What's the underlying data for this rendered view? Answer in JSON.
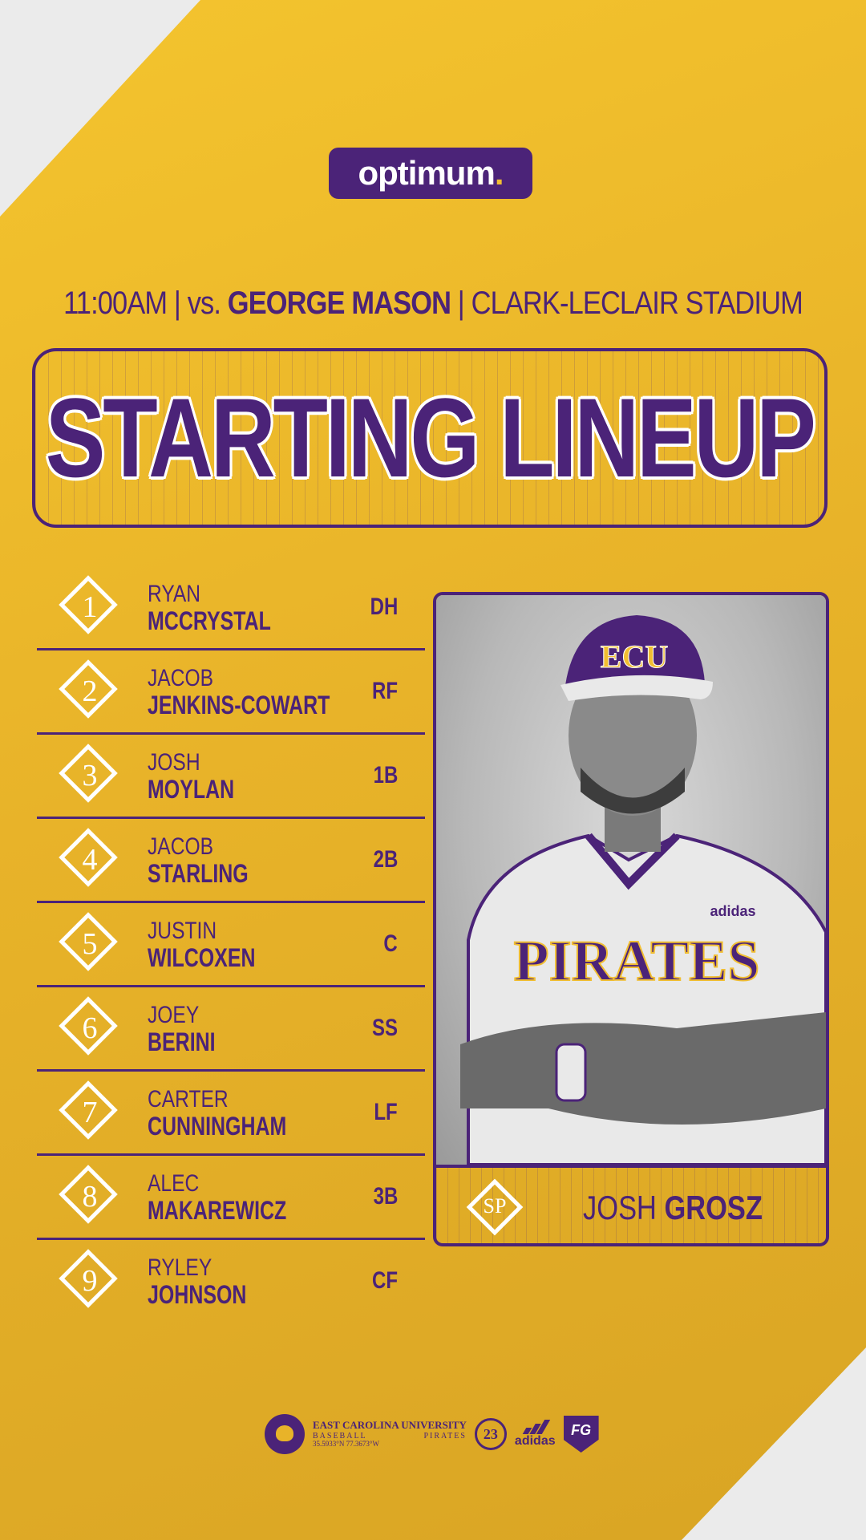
{
  "sponsor": {
    "name": "optimum",
    "dot": "."
  },
  "game": {
    "time": "11:00AM",
    "opponent_prefix": "vs.",
    "opponent": "GEORGE MASON",
    "venue": "CLARK-LECLAIR STADIUM"
  },
  "title": "STARTING LINEUP",
  "lineup": [
    {
      "order": "1",
      "first": "RYAN",
      "last": "MCCRYSTAL",
      "position": "DH"
    },
    {
      "order": "2",
      "first": "JACOB",
      "last": "JENKINS-COWART",
      "position": "RF"
    },
    {
      "order": "3",
      "first": "JOSH",
      "last": "MOYLAN",
      "position": "1B"
    },
    {
      "order": "4",
      "first": "JACOB",
      "last": "STARLING",
      "position": "2B"
    },
    {
      "order": "5",
      "first": "JUSTIN",
      "last": "WILCOXEN",
      "position": "C"
    },
    {
      "order": "6",
      "first": "JOEY",
      "last": "BERINI",
      "position": "SS"
    },
    {
      "order": "7",
      "first": "CARTER",
      "last": "CUNNINGHAM",
      "position": "LF"
    },
    {
      "order": "8",
      "first": "ALEC",
      "last": "MAKAREWICZ",
      "position": "3B"
    },
    {
      "order": "9",
      "first": "RYLEY",
      "last": "JOHNSON",
      "position": "CF"
    }
  ],
  "starting_pitcher": {
    "label": "SP",
    "first": "JOSH",
    "last": "GROSZ",
    "cap_text": "ECU",
    "jersey_text": "PIRATES",
    "jersey_brand": "adidas"
  },
  "footer": {
    "school": "EAST CAROLINA UNIVERSITY",
    "sport": "BASEBALL",
    "team": "PIRATES",
    "coords": "35.5933°N 77.3673°W",
    "season_badge": "23",
    "brand": "adidas",
    "shield_text": "FG"
  },
  "colors": {
    "purple": "#4b2378",
    "gold": "#e8b329",
    "white": "#ffffff"
  }
}
